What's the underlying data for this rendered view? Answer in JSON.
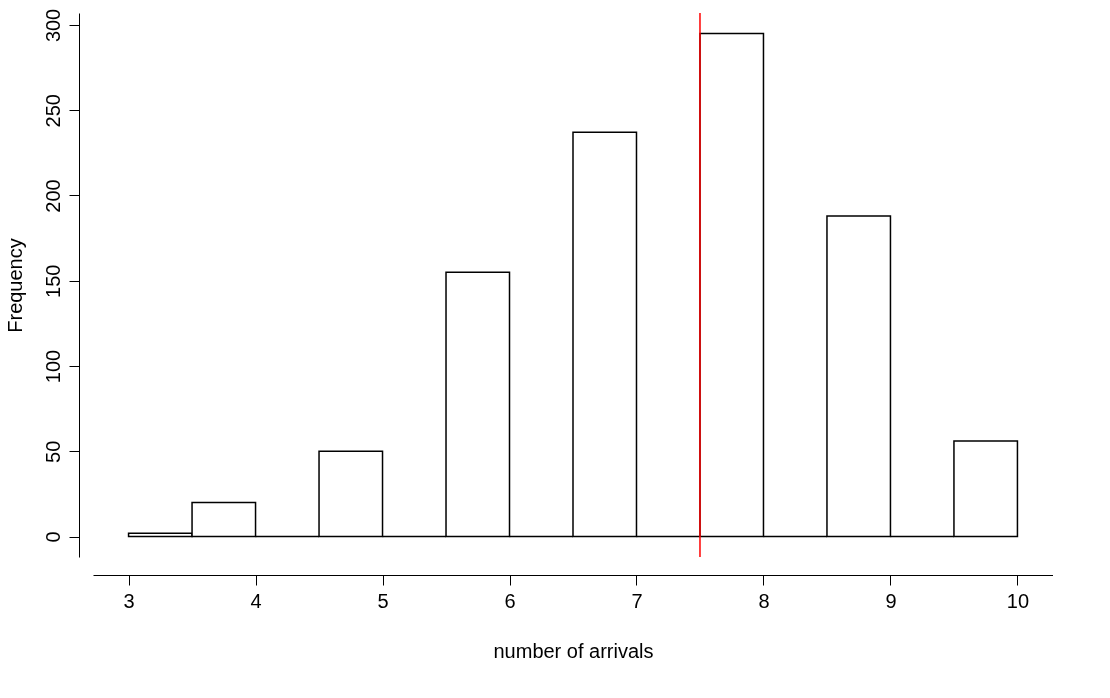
{
  "chart_data": {
    "type": "histogram",
    "xlabel": "number of arrivals",
    "ylabel": "Frequency",
    "bins": [
      3,
      3.5,
      4,
      4.5,
      5,
      5.5,
      6,
      6.5,
      7,
      7.5,
      8,
      8.5,
      9,
      9.5,
      10
    ],
    "values": [
      2,
      20,
      0,
      50,
      0,
      155,
      0,
      237,
      0,
      295,
      0,
      188,
      0,
      56
    ],
    "xlim": [
      2.72,
      10.28
    ],
    "ylim": [
      -12,
      307
    ],
    "xticks": [
      3,
      4,
      5,
      6,
      7,
      8,
      9,
      10
    ],
    "yticks": [
      0,
      50,
      100,
      150,
      200,
      250,
      300
    ],
    "ref_lines": [
      {
        "axis": "x",
        "value": 7.5,
        "color": "#ff0000"
      }
    ],
    "grid": false
  }
}
